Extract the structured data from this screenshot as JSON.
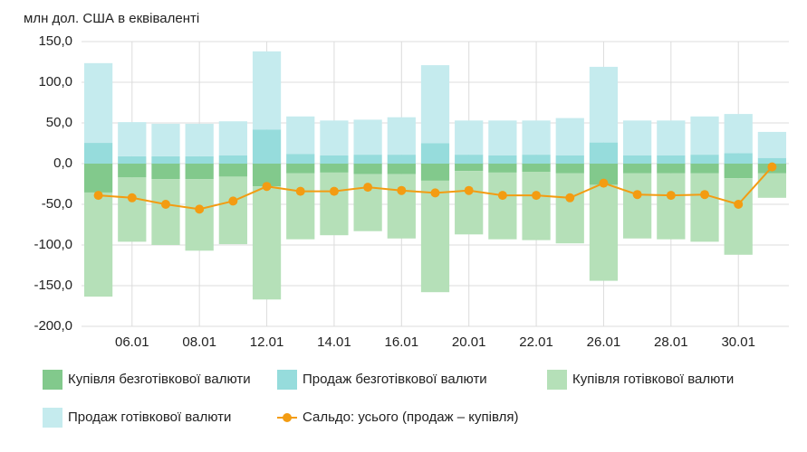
{
  "chart_data": {
    "type": "bar",
    "y_label": "млн дол. США в еквіваленті",
    "categories": [
      null,
      "06.01",
      null,
      "08.01",
      null,
      "12.01",
      null,
      "14.01",
      null,
      "16.01",
      null,
      "20.01",
      null,
      "22.01",
      null,
      "26.01",
      null,
      "28.01",
      null,
      "30.01",
      null
    ],
    "series": [
      {
        "name": "Купівля безготівкової валюти",
        "color": "#82c98c",
        "type": "bar",
        "values": [
          -35.5,
          -17,
          -19,
          -19,
          -16,
          -28,
          -12,
          -11,
          -13,
          -13,
          -21,
          -9,
          -11,
          -10,
          -12,
          -26,
          -12,
          -12,
          -12,
          -18,
          -12
        ]
      },
      {
        "name": "Продаж безготівкової валюти",
        "color": "#96dcdc",
        "type": "bar",
        "values": [
          25.5,
          9,
          9,
          9,
          10,
          42,
          12,
          10,
          11,
          11,
          25,
          11,
          10,
          11,
          10,
          26,
          10,
          10,
          11,
          13,
          7
        ]
      },
      {
        "name": "Купівля готівкової валюти",
        "color": "#b5e0b8",
        "type": "bar",
        "values": [
          -128,
          -79,
          -81,
          -88,
          -83,
          -139,
          -81,
          -77,
          -70,
          -79,
          -137,
          -78,
          -82,
          -84,
          -86,
          -118,
          -80,
          -81,
          -84,
          -94,
          -30
        ]
      },
      {
        "name": "Продаж готівкової валюти",
        "color": "#c5ebee",
        "type": "bar",
        "values": [
          98,
          42,
          40,
          40,
          42,
          96,
          46,
          43,
          43,
          46,
          96,
          42,
          43,
          42,
          46,
          93,
          43,
          43,
          47,
          48,
          32
        ]
      },
      {
        "name": "Сальдо: усього (продаж – купівля)",
        "color": "#f39c12",
        "type": "line",
        "values": [
          -39,
          -42,
          -50,
          -56,
          -46,
          -28,
          -34,
          -34,
          -29,
          -33,
          -36,
          -33,
          -39,
          -39,
          -42,
          -24,
          -38,
          -39,
          -38,
          -50,
          -4
        ]
      }
    ],
    "ylim": [
      -200,
      150
    ],
    "yticks": [
      {
        "value": -200,
        "label": "-200,0"
      },
      {
        "value": -150,
        "label": "-150,0"
      },
      {
        "value": -100,
        "label": "-100,0"
      },
      {
        "value": -50,
        "label": "-50,0"
      },
      {
        "value": 0,
        "label": "0,0"
      },
      {
        "value": 50,
        "label": "50,0"
      },
      {
        "value": 100,
        "label": "100,0"
      },
      {
        "value": 150,
        "label": "150,0"
      }
    ],
    "grid": true
  }
}
